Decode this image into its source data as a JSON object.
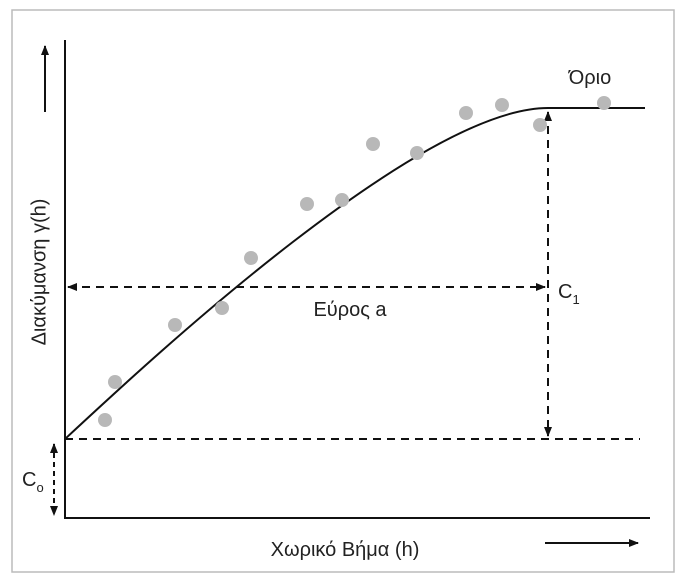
{
  "axes": {
    "y_label": "Διακύμανση γ(h)",
    "x_label": "Χωρικό Βήμα (h)"
  },
  "labels": {
    "sill": "Όριο",
    "range": "Εύρος a",
    "c1": {
      "base": "C",
      "sub": "1"
    },
    "c0": {
      "base": "C",
      "sub": "o"
    }
  }
}
